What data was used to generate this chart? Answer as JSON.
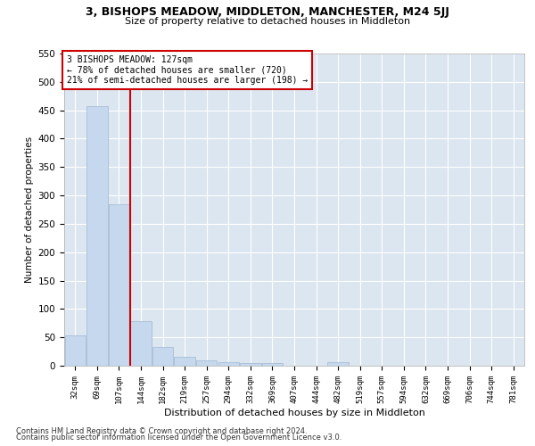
{
  "title_line1": "3, BISHOPS MEADOW, MIDDLETON, MANCHESTER, M24 5JJ",
  "title_line2": "Size of property relative to detached houses in Middleton",
  "xlabel": "Distribution of detached houses by size in Middleton",
  "ylabel": "Number of detached properties",
  "footnote1": "Contains HM Land Registry data © Crown copyright and database right 2024.",
  "footnote2": "Contains public sector information licensed under the Open Government Licence v3.0.",
  "bar_labels": [
    "32sqm",
    "69sqm",
    "107sqm",
    "144sqm",
    "182sqm",
    "219sqm",
    "257sqm",
    "294sqm",
    "332sqm",
    "369sqm",
    "407sqm",
    "444sqm",
    "482sqm",
    "519sqm",
    "557sqm",
    "594sqm",
    "632sqm",
    "669sqm",
    "706sqm",
    "744sqm",
    "781sqm"
  ],
  "bar_values": [
    53,
    457,
    285,
    78,
    33,
    15,
    10,
    6,
    5,
    5,
    0,
    0,
    6,
    0,
    0,
    0,
    0,
    0,
    0,
    0,
    0
  ],
  "bar_color": "#c5d8ed",
  "bar_edge_color": "#a0b8d0",
  "property_label": "3 BISHOPS MEADOW: 127sqm",
  "annotation_line1": "← 78% of detached houses are smaller (720)",
  "annotation_line2": "21% of semi-detached houses are larger (198) →",
  "vline_color": "#cc0000",
  "annotation_box_color": "#cc0000",
  "ylim": [
    0,
    550
  ],
  "yticks": [
    0,
    50,
    100,
    150,
    200,
    250,
    300,
    350,
    400,
    450,
    500,
    550
  ],
  "background_color": "#dce6f0",
  "grid_color": "#ffffff",
  "fig_background": "#ffffff"
}
